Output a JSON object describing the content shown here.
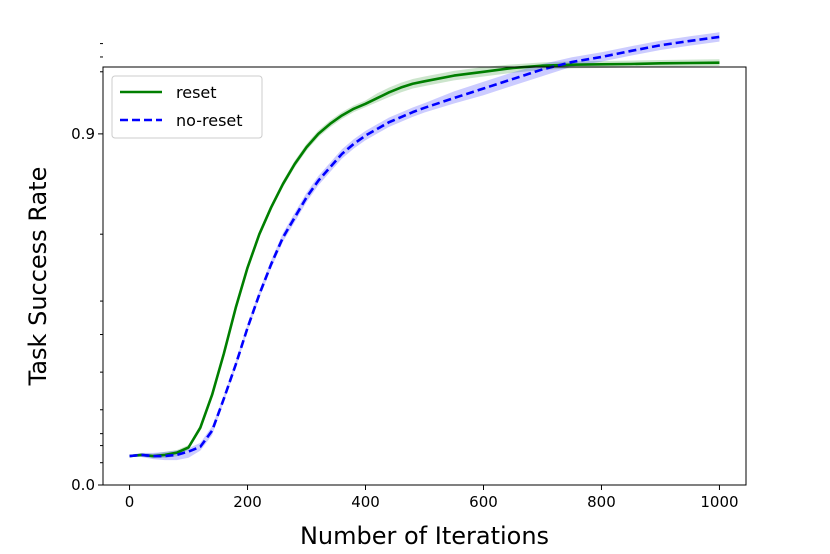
{
  "chart_data": {
    "type": "line",
    "xlabel": "Number of Iterations",
    "ylabel": "Task Success Rate",
    "xlim": [
      -45,
      1045
    ],
    "ylim": [
      0.0,
      1.17
    ],
    "x_scale": "linear",
    "y_scale": "custom-stretched",
    "y_axis_anchors": [
      [
        0.0,
        0.0
      ],
      [
        0.03,
        0.08
      ],
      [
        0.1,
        0.18
      ],
      [
        0.2,
        0.27
      ],
      [
        0.3,
        0.36
      ],
      [
        0.4,
        0.44
      ],
      [
        0.5,
        0.52
      ],
      [
        0.6,
        0.6
      ],
      [
        0.7,
        0.68
      ],
      [
        0.8,
        0.76
      ],
      [
        0.9,
        0.84
      ],
      [
        1.0,
        0.92
      ],
      [
        1.07,
        1.0
      ],
      [
        1.17,
        1.08
      ]
    ],
    "xticks": [
      0,
      200,
      400,
      600,
      800,
      1000
    ],
    "xtick_labels": [
      "0",
      "200",
      "400",
      "600",
      "800",
      "1000"
    ],
    "yticks_major": [
      0.0,
      0.9
    ],
    "ytick_labels": [
      "0.0",
      "0.9"
    ],
    "yticks_minor": [
      0.02,
      0.04,
      0.06,
      0.1,
      0.2,
      0.3,
      0.4,
      0.6,
      1.06,
      1.1,
      1.14
    ],
    "grid": false,
    "legend_position": "top-left",
    "x": [
      0,
      20,
      40,
      60,
      80,
      100,
      120,
      140,
      160,
      180,
      200,
      220,
      240,
      260,
      280,
      300,
      320,
      340,
      360,
      380,
      400,
      420,
      440,
      460,
      480,
      500,
      550,
      600,
      650,
      700,
      750,
      800,
      850,
      900,
      950,
      1000
    ],
    "series": [
      {
        "name": "reset",
        "color": "#007f00",
        "style": "solid",
        "values": [
          0.026,
          0.027,
          0.026,
          0.027,
          0.029,
          0.037,
          0.07,
          0.14,
          0.25,
          0.38,
          0.5,
          0.6,
          0.68,
          0.75,
          0.81,
          0.86,
          0.9,
          0.93,
          0.955,
          0.975,
          0.99,
          1.005,
          1.017,
          1.027,
          1.035,
          1.04,
          1.052,
          1.06,
          1.068,
          1.074,
          1.077,
          1.078,
          1.079,
          1.081,
          1.082,
          1.083
        ],
        "band_spread": 0.01
      },
      {
        "name": "no-reset",
        "color": "#0000ff",
        "style": "dashed",
        "values": [
          0.026,
          0.027,
          0.026,
          0.026,
          0.027,
          0.03,
          0.038,
          0.065,
          0.13,
          0.22,
          0.32,
          0.42,
          0.51,
          0.59,
          0.65,
          0.71,
          0.76,
          0.8,
          0.84,
          0.87,
          0.895,
          0.915,
          0.935,
          0.95,
          0.965,
          0.978,
          1.005,
          1.025,
          1.045,
          1.065,
          1.085,
          1.1,
          1.118,
          1.135,
          1.148,
          1.16
        ],
        "band_spread": 0.014
      }
    ]
  }
}
